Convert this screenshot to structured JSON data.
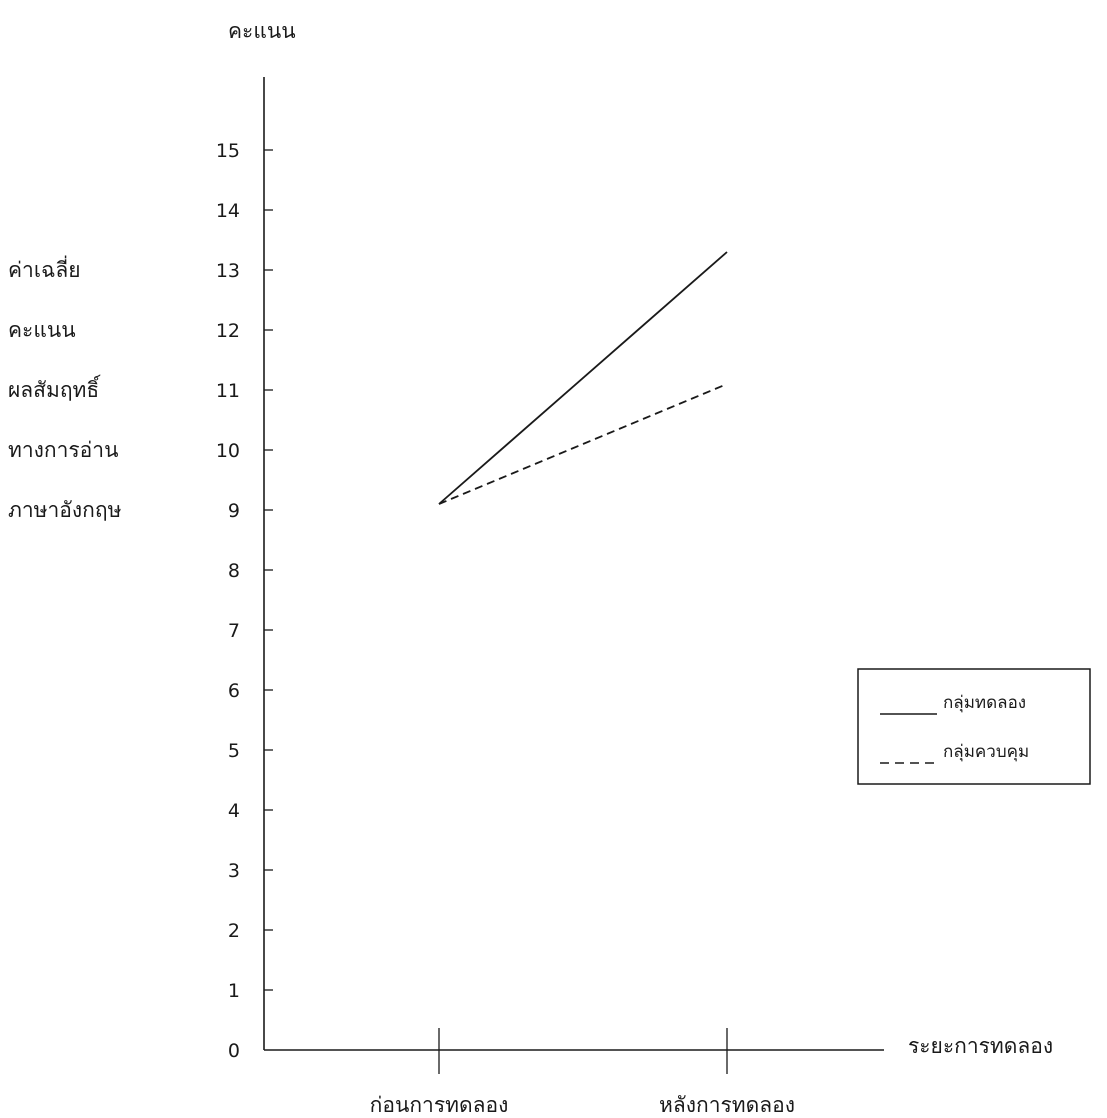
{
  "chart_data": {
    "type": "line",
    "title": "",
    "ylabel_top": "คะแนน",
    "ylabel_lines": [
      "ค่าเฉลี่ย",
      "คะแนน",
      "ผลสัมฤทธิ์",
      "ทางการอ่าน",
      "ภาษาอังกฤษ"
    ],
    "xlabel": "ระยะการทดลอง",
    "categories": [
      "ก่อนการทดลอง",
      "หลังการทดลอง"
    ],
    "ylim": [
      0,
      16
    ],
    "yticks": [
      0,
      1,
      2,
      3,
      4,
      5,
      6,
      7,
      8,
      9,
      10,
      11,
      12,
      13,
      14,
      15
    ],
    "grid": false,
    "legend_position": "right",
    "series": [
      {
        "name": "กลุ่มทดลอง",
        "values": [
          9.1,
          13.3
        ],
        "style": "solid",
        "color": "#1a1a1a"
      },
      {
        "name": "กลุ่มควบคุม",
        "values": [
          9.1,
          11.1
        ],
        "style": "dashed",
        "color": "#1a1a1a"
      }
    ]
  }
}
